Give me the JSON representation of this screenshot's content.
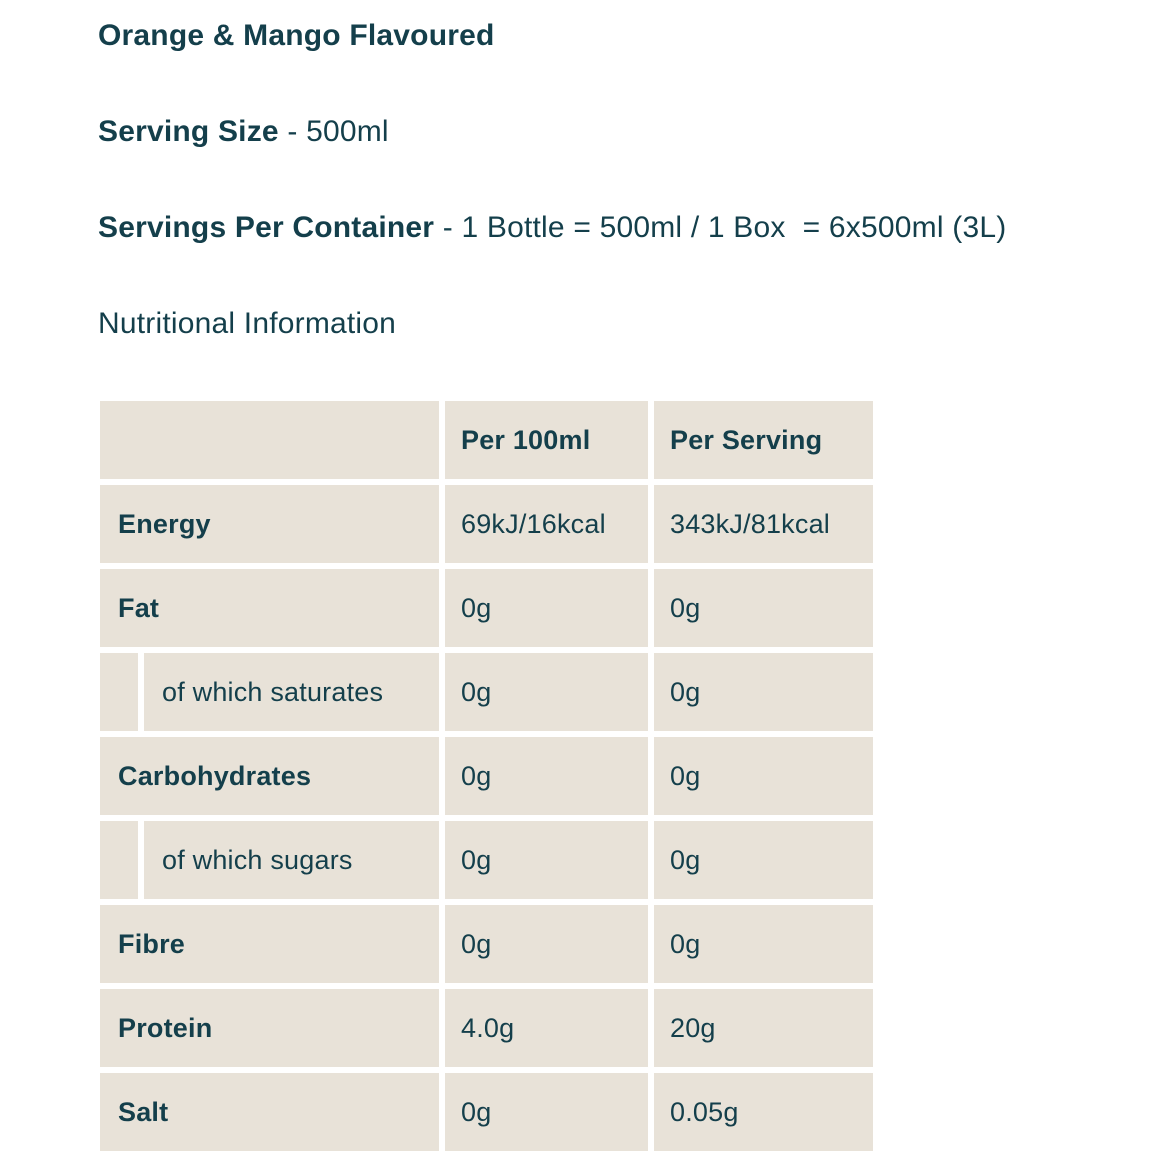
{
  "intro": {
    "flavour_title": "Orange & Mango Flavoured",
    "serving_size_label": "Serving Size",
    "serving_size_value": " - 500ml",
    "servings_per_container_label": "Servings Per Container",
    "servings_per_container_value": " - 1 Bottle = 500ml / 1 Box  = 6x500ml (3L)",
    "nutrition_heading": "Nutritional Information"
  },
  "table": {
    "header": {
      "col_label": "",
      "per_100ml": "Per 100ml",
      "per_serving": "Per Serving"
    },
    "rows": [
      {
        "label": "Energy",
        "indent": false,
        "per_100ml": "69kJ/16kcal",
        "per_serving": "343kJ/81kcal"
      },
      {
        "label": "Fat",
        "indent": false,
        "per_100ml": "0g",
        "per_serving": "0g"
      },
      {
        "label": "of which saturates",
        "indent": true,
        "per_100ml": "0g",
        "per_serving": "0g"
      },
      {
        "label": "Carbohydrates",
        "indent": false,
        "per_100ml": "0g",
        "per_serving": "0g"
      },
      {
        "label": "of which sugars",
        "indent": true,
        "per_100ml": "0g",
        "per_serving": "0g"
      },
      {
        "label": "Fibre",
        "indent": false,
        "per_100ml": "0g",
        "per_serving": "0g"
      },
      {
        "label": "Protein",
        "indent": false,
        "per_100ml": "4.0g",
        "per_serving": "20g"
      },
      {
        "label": "Salt",
        "indent": false,
        "per_100ml": "0g",
        "per_serving": "0.05g"
      }
    ]
  },
  "colors": {
    "text_teal": "#143f4b",
    "cell_beige": "#e8e2d8",
    "page_background": "#ffffff"
  }
}
